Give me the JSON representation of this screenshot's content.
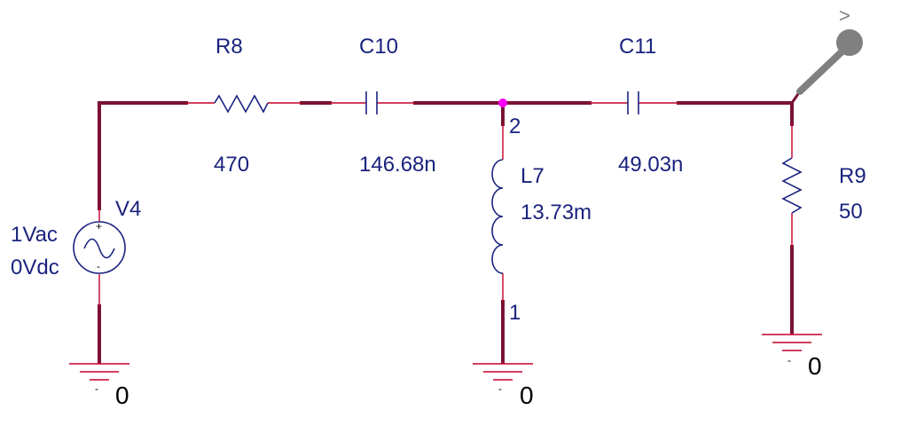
{
  "components": {
    "R8": {
      "name": "R8",
      "value": "470"
    },
    "C10": {
      "name": "C10",
      "value": "146.68n"
    },
    "C11": {
      "name": "C11",
      "value": "49.03n"
    },
    "L7": {
      "name": "L7",
      "value": "13.73m",
      "pin_top": "2",
      "pin_bottom": "1"
    },
    "R9": {
      "name": "R9",
      "value": "50"
    },
    "V4": {
      "name": "V4",
      "ac": "1Vac",
      "dc": "0Vdc",
      "plus": "+",
      "minus": "-"
    }
  },
  "grounds": {
    "left": {
      "label": "0",
      "minus": "-"
    },
    "middle": {
      "label": "0",
      "minus": "-"
    },
    "right": {
      "label": "0",
      "minus": "-"
    }
  },
  "probe": {
    "marker": ">"
  },
  "colors": {
    "wire": "#7b1234",
    "pin": "#c40028",
    "body": "#1a237e",
    "text": "#1a237e",
    "junction": "#ff00ff",
    "probe": "#808080"
  }
}
